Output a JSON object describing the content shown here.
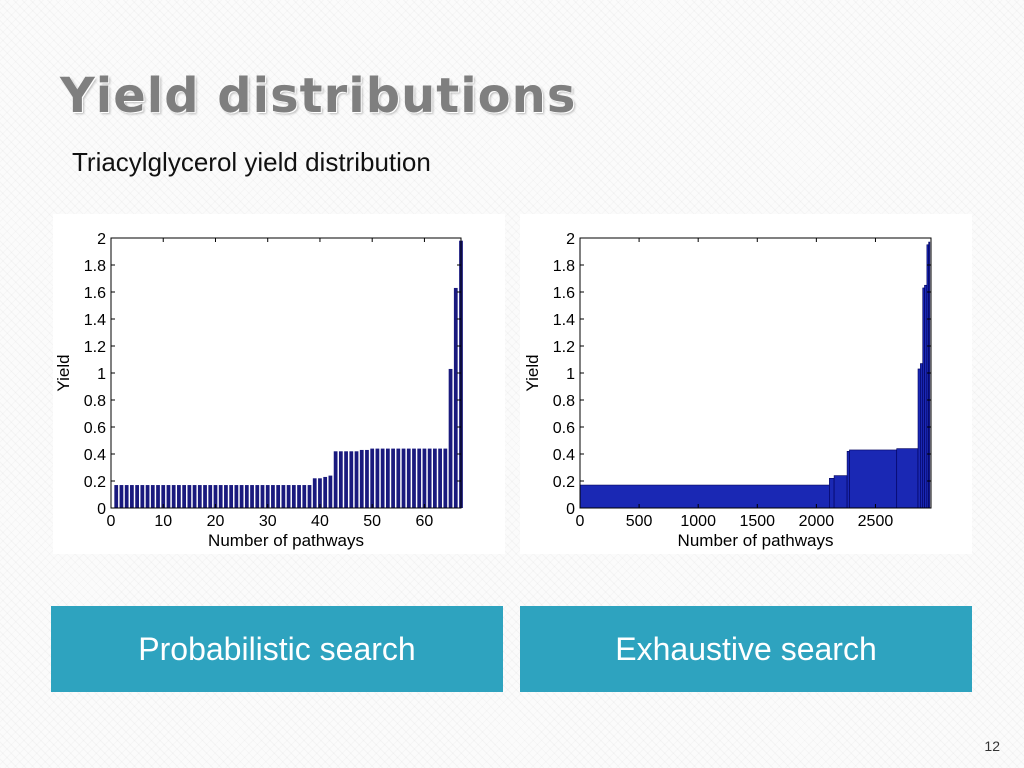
{
  "slide": {
    "title": "Yield distributions",
    "subtitle": "Triacylglycerol yield distribution",
    "page_number": "12",
    "accent_color": "#2ea3bf",
    "title_color": "#7f7f7f"
  },
  "boxes": {
    "left_label": "Probabilistic search",
    "right_label": "Exhaustive search"
  },
  "chart_data": [
    {
      "type": "bar",
      "title": "",
      "xlabel": "Number of pathways",
      "ylabel": "Yield",
      "xlim": [
        0,
        67
      ],
      "ylim": [
        0,
        2
      ],
      "xticks": [
        "0",
        "10",
        "20",
        "30",
        "40",
        "50",
        "60"
      ],
      "yticks": [
        "0",
        "0.2",
        "0.4",
        "0.6",
        "0.8",
        "1",
        "1.2",
        "1.4",
        "1.6",
        "1.8",
        "2"
      ],
      "bar_color": "#1a1a7e",
      "values": [
        0.17,
        0.17,
        0.17,
        0.17,
        0.17,
        0.17,
        0.17,
        0.17,
        0.17,
        0.17,
        0.17,
        0.17,
        0.17,
        0.17,
        0.17,
        0.17,
        0.17,
        0.17,
        0.17,
        0.17,
        0.17,
        0.17,
        0.17,
        0.17,
        0.17,
        0.17,
        0.17,
        0.17,
        0.17,
        0.17,
        0.17,
        0.17,
        0.17,
        0.17,
        0.17,
        0.17,
        0.17,
        0.17,
        0.22,
        0.22,
        0.23,
        0.24,
        0.42,
        0.42,
        0.42,
        0.42,
        0.42,
        0.43,
        0.43,
        0.44,
        0.44,
        0.44,
        0.44,
        0.44,
        0.44,
        0.44,
        0.44,
        0.44,
        0.44,
        0.44,
        0.44,
        0.44,
        0.44,
        0.44,
        1.03,
        1.63,
        1.98
      ]
    },
    {
      "type": "bar",
      "title": "",
      "xlabel": "Number of pathways",
      "ylabel": "Yield",
      "xlim": [
        0,
        2970
      ],
      "ylim": [
        0,
        2
      ],
      "xticks": [
        "0",
        "500",
        "1000",
        "1500",
        "2000",
        "2500"
      ],
      "yticks": [
        "0",
        "0.2",
        "0.4",
        "0.6",
        "0.8",
        "1",
        "1.2",
        "1.4",
        "1.6",
        "1.8",
        "2"
      ],
      "bar_color": "#1a28b4",
      "bar_edge_color": "#00005a",
      "segments": [
        {
          "from": 0,
          "to": 2110,
          "value": 0.17
        },
        {
          "from": 2110,
          "to": 2150,
          "value": 0.22
        },
        {
          "from": 2150,
          "to": 2260,
          "value": 0.24
        },
        {
          "from": 2260,
          "to": 2280,
          "value": 0.42
        },
        {
          "from": 2280,
          "to": 2680,
          "value": 0.43
        },
        {
          "from": 2680,
          "to": 2860,
          "value": 0.44
        },
        {
          "from": 2860,
          "to": 2880,
          "value": 1.03
        },
        {
          "from": 2880,
          "to": 2900,
          "value": 1.07
        },
        {
          "from": 2900,
          "to": 2915,
          "value": 1.63
        },
        {
          "from": 2915,
          "to": 2935,
          "value": 1.65
        },
        {
          "from": 2935,
          "to": 2950,
          "value": 1.95
        },
        {
          "from": 2950,
          "to": 2960,
          "value": 1.97
        }
      ]
    }
  ]
}
